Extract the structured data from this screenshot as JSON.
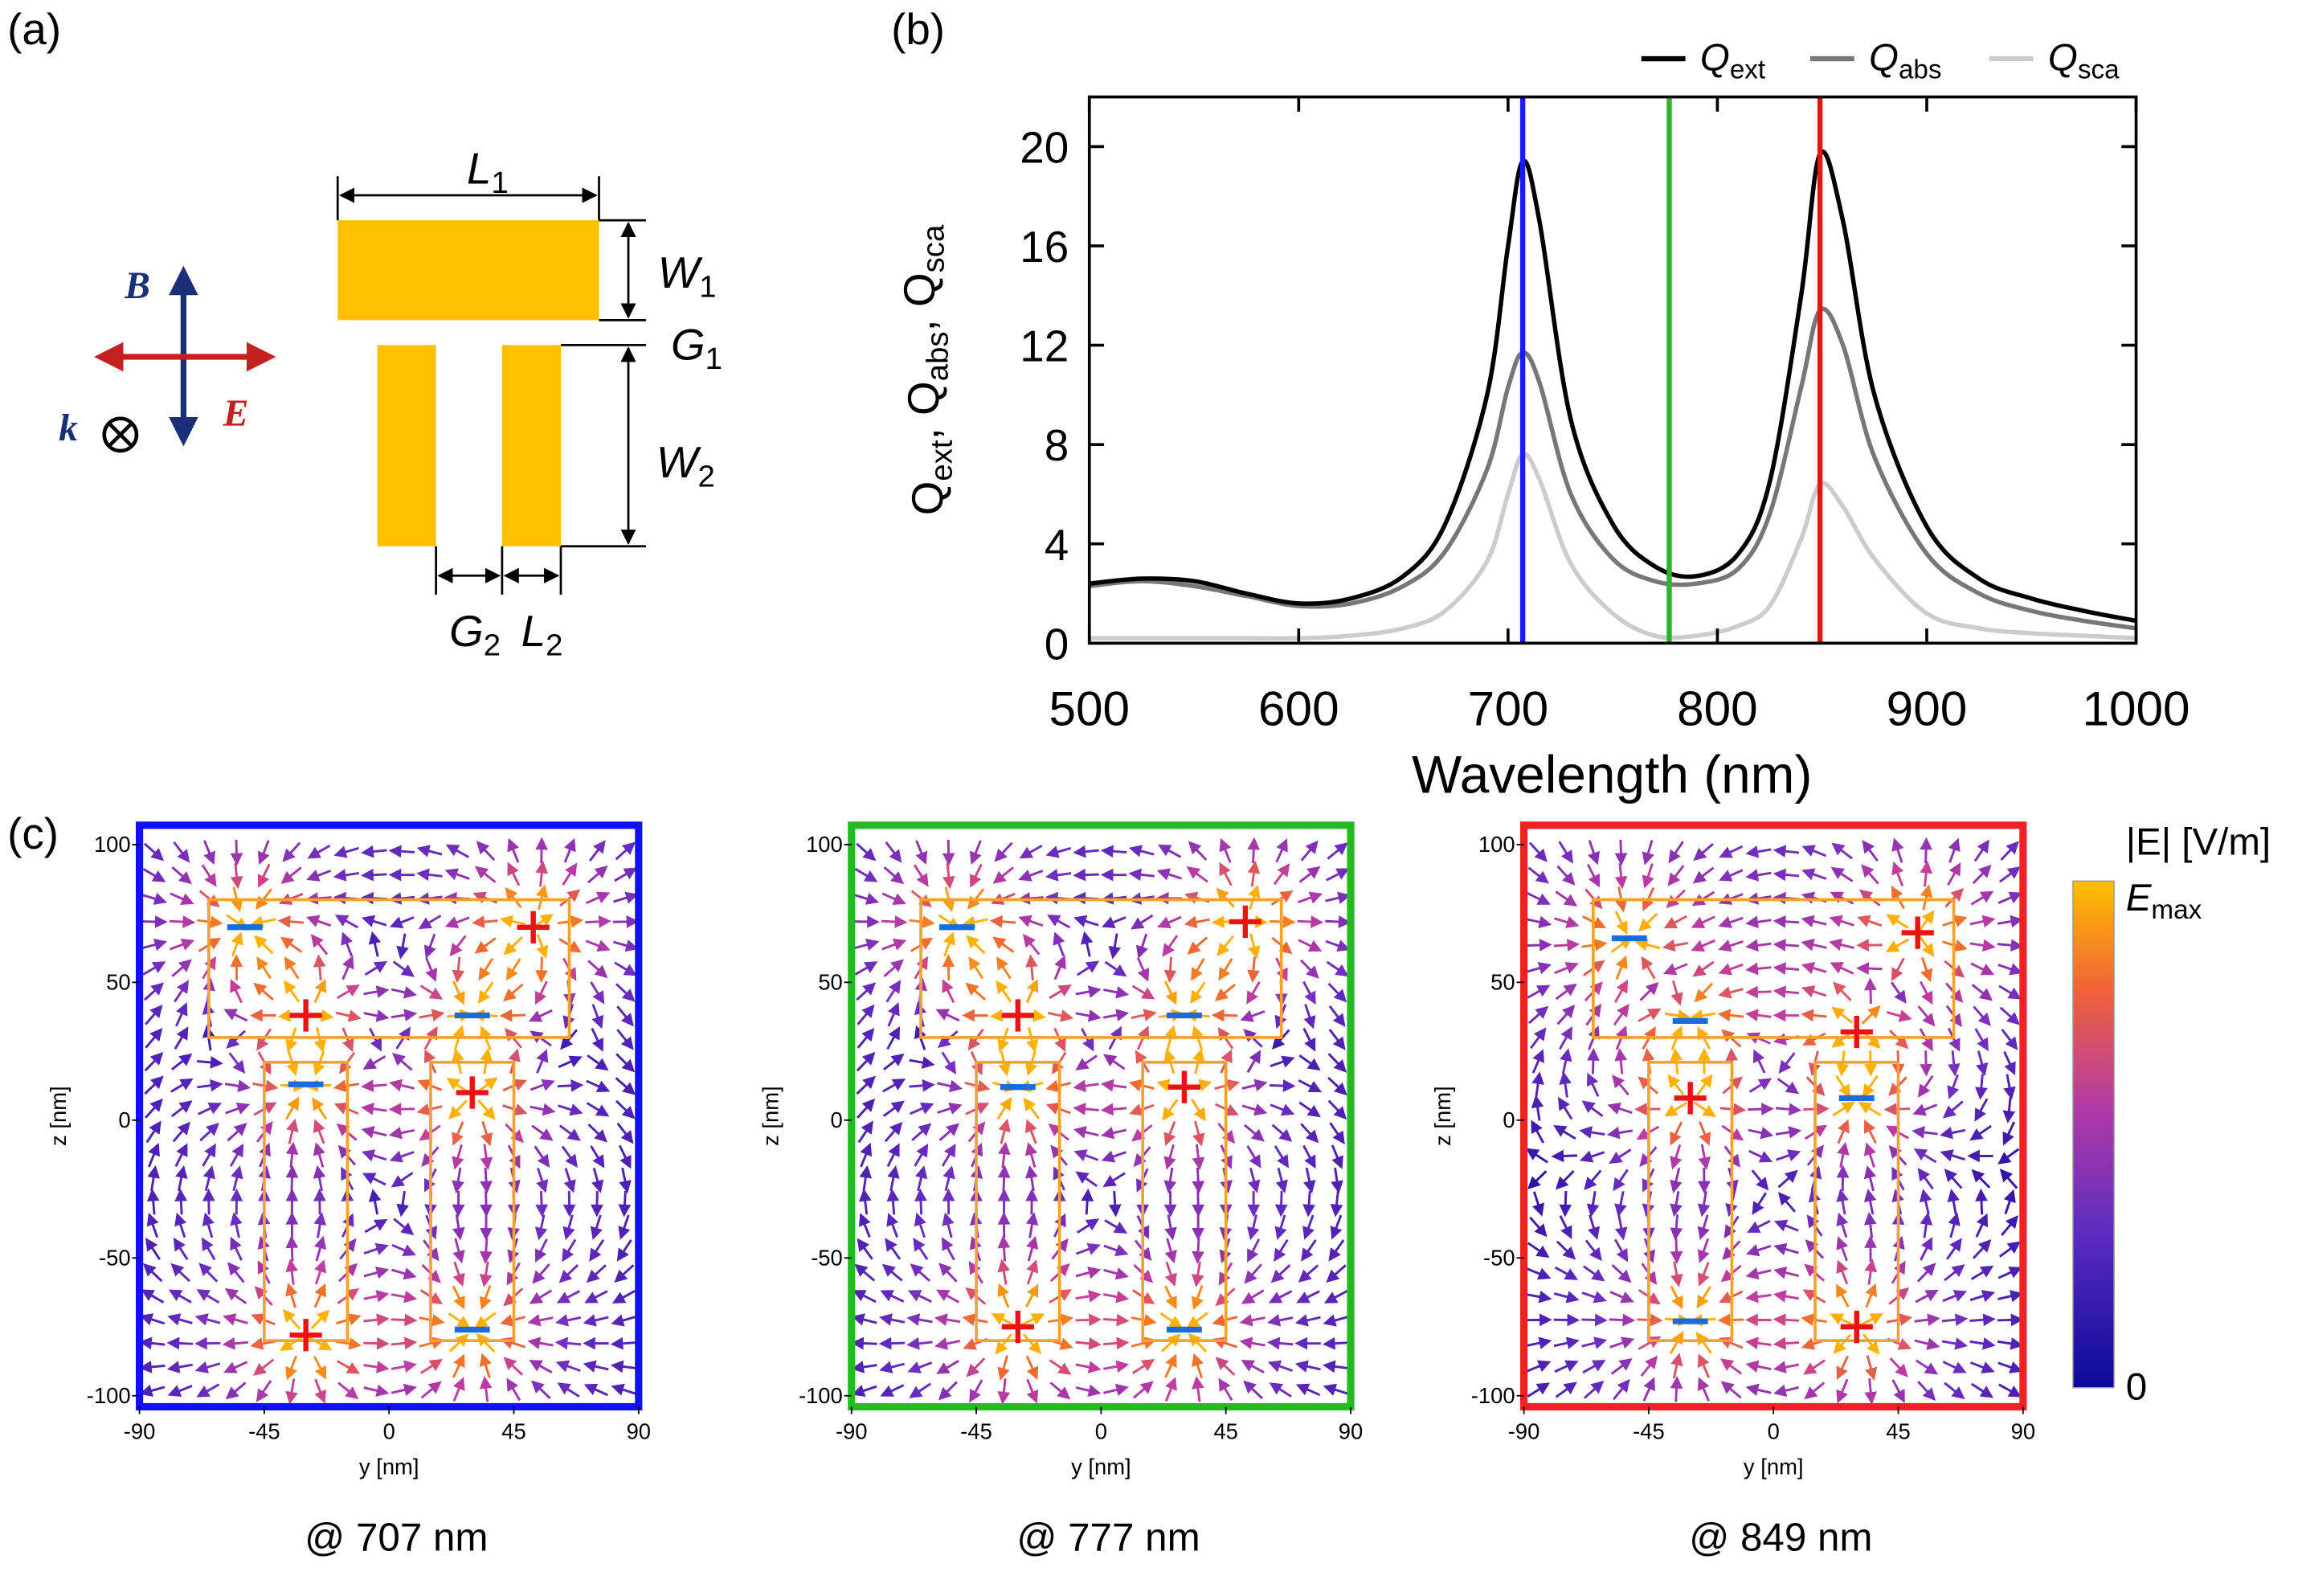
{
  "panel_a": {
    "label": "(a)",
    "B": "B",
    "E": "E",
    "k": "k",
    "L1": "L1",
    "W1": "W1",
    "G1": "G1",
    "W2": "W2",
    "G2": "G2",
    "L2": "L2"
  },
  "chart_data": {
    "type": "line",
    "label": "(b)",
    "x": [
      500,
      525,
      550,
      575,
      600,
      625,
      650,
      670,
      690,
      700,
      707,
      715,
      730,
      750,
      770,
      790,
      810,
      825,
      840,
      849,
      860,
      875,
      900,
      925,
      950,
      975,
      1000
    ],
    "series": [
      {
        "name": "Qext",
        "color": "#000000",
        "values": [
          2.4,
          2.6,
          2.5,
          2.0,
          1.6,
          1.8,
          2.7,
          4.8,
          10,
          16,
          19.4,
          17,
          9,
          4.8,
          3.1,
          2.7,
          3.6,
          6.5,
          14,
          19.7,
          17,
          10,
          4.7,
          2.6,
          1.8,
          1.3,
          0.9
        ]
      },
      {
        "name": "Qabs",
        "color": "#777777",
        "values": [
          2.3,
          2.5,
          2.3,
          1.9,
          1.5,
          1.6,
          2.3,
          3.7,
          7,
          10.3,
          11.7,
          10.5,
          6,
          3.4,
          2.5,
          2.4,
          3,
          5.2,
          10.3,
          13.4,
          12,
          7.5,
          3.6,
          2,
          1.3,
          0.9,
          0.6
        ]
      },
      {
        "name": "Qsca",
        "color": "#cccccc",
        "values": [
          0.2,
          0.2,
          0.2,
          0.2,
          0.2,
          0.3,
          0.6,
          1.3,
          3.3,
          6,
          7.6,
          6.6,
          3.2,
          1.2,
          0.3,
          0.3,
          0.7,
          1.5,
          4.2,
          6.4,
          5.5,
          3.4,
          1.2,
          0.6,
          0.4,
          0.3,
          0.2
        ]
      }
    ],
    "xlim": [
      500,
      1000
    ],
    "xticks": [
      500,
      600,
      700,
      800,
      900,
      1000
    ],
    "ylim": [
      0,
      22
    ],
    "yticks": [
      0,
      4,
      8,
      12,
      16,
      20
    ],
    "xlabel": "Wavelength (nm)",
    "ylabel": "Qext, Qabs, Qsca",
    "legend": "top-right",
    "markers": [
      {
        "value": 707,
        "color": "#1a1aff"
      },
      {
        "value": 777,
        "color": "#22bb22"
      },
      {
        "value": 849,
        "color": "#ee1111"
      }
    ]
  },
  "field_maps": {
    "label": "(c)",
    "colorbar": {
      "title": "|E| [V/m]",
      "max_label": "Emax",
      "min_label": "0"
    },
    "panels": [
      {
        "caption": "@ 707 nm",
        "frame_color": "#1010ff",
        "xlabel": "y [nm]",
        "ylabel": "z [nm]",
        "xlim": [
          -90,
          90
        ],
        "ylim": [
          -104,
          107
        ],
        "xticks": [
          -90,
          -45,
          0,
          45,
          90
        ],
        "yticks": [
          -100,
          -50,
          0,
          50,
          100
        ]
      },
      {
        "caption": "@ 777 nm",
        "frame_color": "#22bb22",
        "xlabel": "y [nm]",
        "ylabel": "z [nm]",
        "xlim": [
          -90,
          90
        ],
        "ylim": [
          -104,
          107
        ],
        "xticks": [
          -90,
          -45,
          0,
          45,
          90
        ],
        "yticks": [
          -100,
          -50,
          0,
          50,
          100
        ]
      },
      {
        "caption": "@ 849 nm",
        "frame_color": "#ee2222",
        "xlabel": "y [nm]",
        "ylabel": "z [nm]",
        "xlim": [
          -90,
          90
        ],
        "ylim": [
          -104,
          107
        ],
        "xticks": [
          -90,
          -45,
          0,
          45,
          90
        ],
        "yticks": [
          -100,
          -50,
          0,
          50,
          100
        ]
      }
    ]
  }
}
